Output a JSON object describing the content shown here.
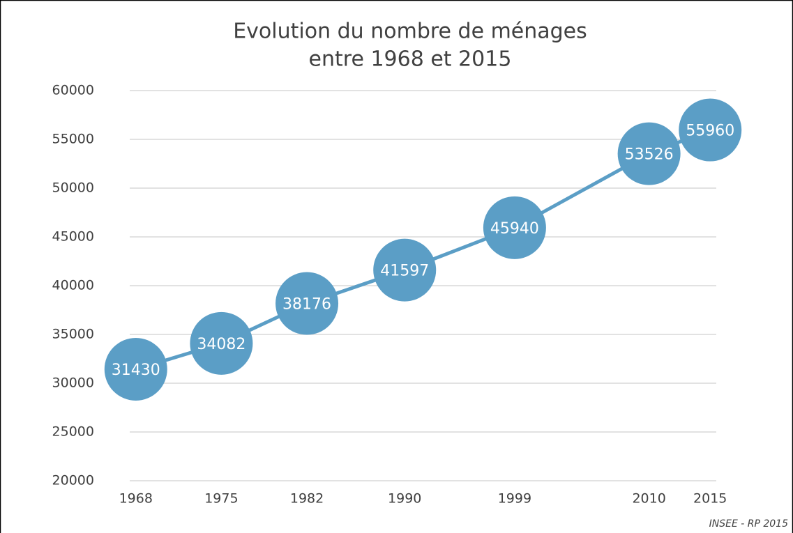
{
  "chart_data": {
    "type": "line",
    "title": "Evolution du nombre de ménages",
    "subtitle": "entre 1968 et 2015",
    "source": "INSEE - RP 2015",
    "x": [
      1968,
      1975,
      1982,
      1990,
      1999,
      2010,
      2015
    ],
    "values": [
      31430,
      34082,
      38176,
      41597,
      45940,
      53526,
      55960
    ],
    "color": "#5b9ec6",
    "xlim": [
      1967.5,
      2015.5
    ],
    "xticks": [
      1968,
      1975,
      1982,
      1990,
      1999,
      2010,
      2015
    ],
    "ylim": [
      20000,
      60000
    ],
    "yticks": [
      20000,
      25000,
      30000,
      35000,
      40000,
      45000,
      50000,
      55000,
      60000
    ],
    "grid": true
  }
}
